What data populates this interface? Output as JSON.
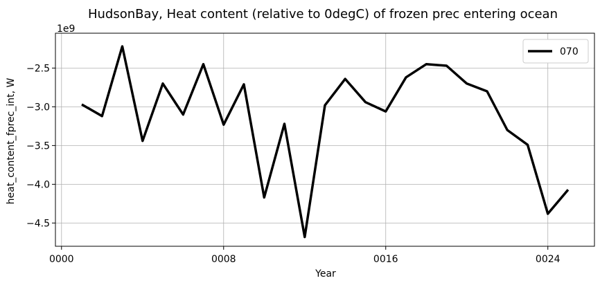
{
  "chart_data": {
    "type": "line",
    "title": "HudsonBay, Heat content (relative to 0degC) of frozen prec entering ocean",
    "xlabel": "Year",
    "ylabel": "heat_content_fprec_int, W",
    "y_offset_label": "1e9",
    "xlim": [
      -0.3,
      26.3
    ],
    "ylim": [
      -4.8,
      -2.05
    ],
    "x_ticks": [
      0,
      8,
      16,
      24
    ],
    "x_tick_labels": [
      "0000",
      "0008",
      "0016",
      "0024"
    ],
    "y_ticks": [
      -2.5,
      -3.0,
      -3.5,
      -4.0,
      -4.5
    ],
    "y_tick_labels": [
      "−2.5",
      "−3.0",
      "−3.5",
      "−4.0",
      "−4.5"
    ],
    "grid": true,
    "legend_position": "top-right",
    "series": [
      {
        "name": "070",
        "color": "#000000",
        "x": [
          1,
          2,
          3,
          4,
          5,
          6,
          7,
          8,
          9,
          10,
          11,
          12,
          13,
          14,
          15,
          16,
          17,
          18,
          19,
          20,
          21,
          22,
          23,
          24,
          25
        ],
        "y": [
          -2.97,
          -3.12,
          -2.22,
          -3.44,
          -2.7,
          -3.1,
          -2.45,
          -3.23,
          -2.71,
          -4.17,
          -3.22,
          -4.68,
          -2.98,
          -2.64,
          -2.94,
          -3.06,
          -2.62,
          -2.45,
          -2.47,
          -2.7,
          -2.8,
          -3.3,
          -3.49,
          -4.38,
          -4.07
        ]
      }
    ]
  }
}
